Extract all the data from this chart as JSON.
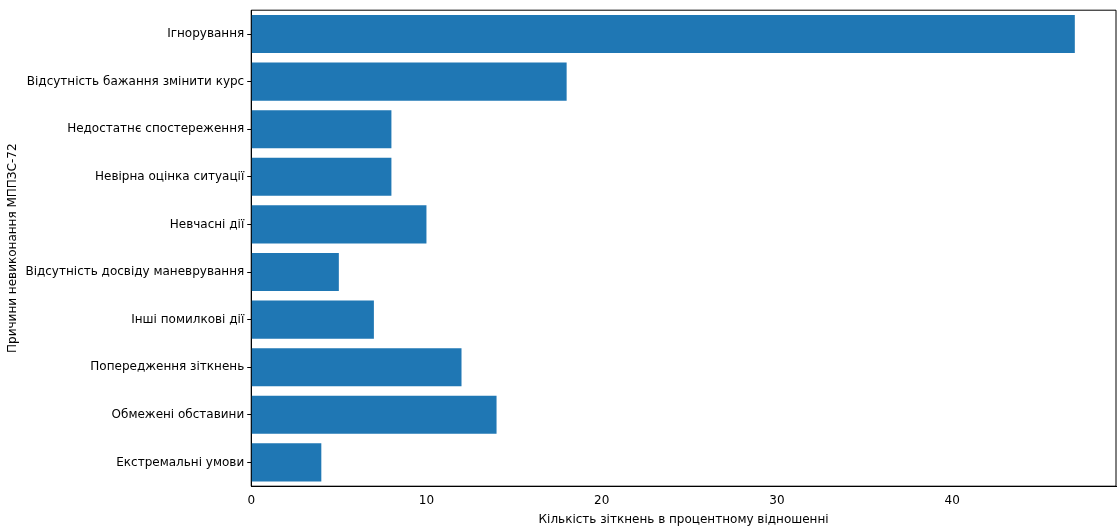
{
  "chart_data": {
    "type": "bar",
    "orientation": "horizontal",
    "xlabel": "Кількість зіткнень в процентному відношенні",
    "ylabel": "Причини невиконання МППЗС-72",
    "categories": [
      "Ігнорування",
      "Відсутність бажання змінити курс",
      "Недостатнє спостереження",
      "Невірна оцінка ситуації",
      "Невчасні дії",
      "Відсутність досвіду маневрування",
      "Інші помилкові дії",
      "Попередження зіткнень",
      "Обмежені обставини",
      "Екстремальні умови"
    ],
    "values": [
      47,
      18,
      8,
      8,
      10,
      5,
      7,
      12,
      14,
      4
    ],
    "color": "#1f77b4",
    "xlim": [
      0,
      49.35
    ],
    "xticks": [
      0,
      10,
      20,
      30,
      40
    ],
    "grid": false
  }
}
